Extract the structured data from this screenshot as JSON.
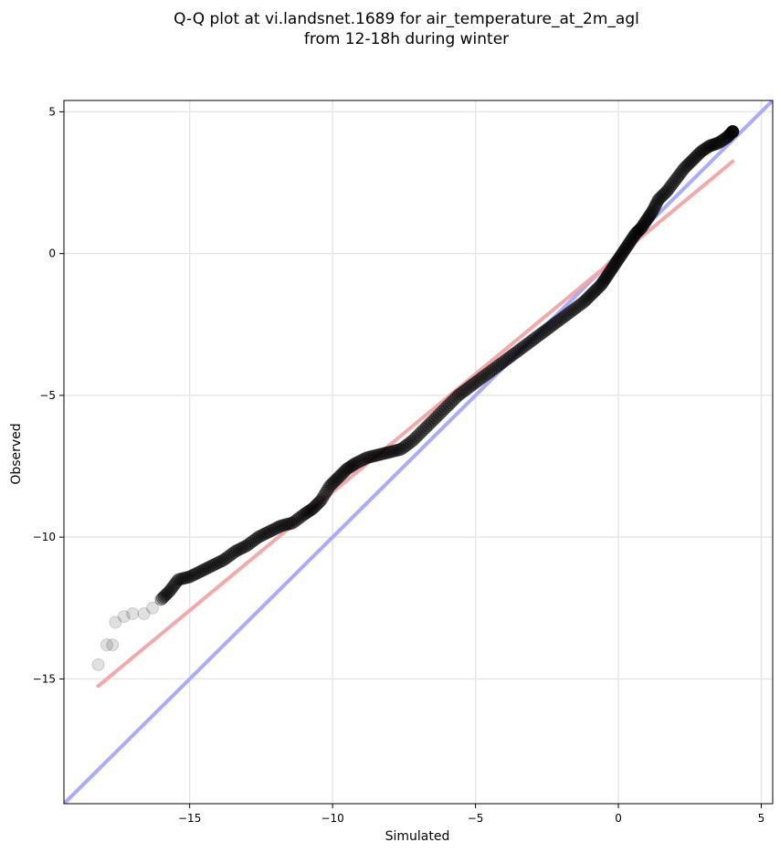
{
  "chart_data": {
    "type": "scatter",
    "title": "Q-Q plot at vi.landsnet.1689 for air_temperature_at_2m_agl",
    "subtitle": "from 12-18h during winter",
    "xlabel": "Simulated",
    "ylabel": "Observed",
    "xlim": [
      -19.4,
      5.4
    ],
    "ylim": [
      -19.4,
      5.4
    ],
    "x_ticks": [
      -15,
      -10,
      -5,
      0,
      5
    ],
    "y_ticks": [
      -15,
      -10,
      -5,
      0,
      5
    ],
    "x_tick_labels": [
      "−15",
      "−10",
      "−5",
      "0",
      "5"
    ],
    "y_tick_labels": [
      "−15",
      "−10",
      "−5",
      "0",
      "5"
    ],
    "grid": true,
    "reference_lines": [
      {
        "kind": "identity",
        "color": "#aaaaff",
        "x": [
          -19.4,
          5.4
        ],
        "y": [
          -19.4,
          5.4
        ]
      },
      {
        "kind": "fit",
        "color": "#f4a8a8",
        "x": [
          -18.2,
          4.0
        ],
        "y": [
          -15.25,
          3.25
        ]
      }
    ],
    "quantile_curve": {
      "color": "#000000",
      "x": [
        -18.2,
        -17.9,
        -17.7,
        -17.6,
        -17.3,
        -17.0,
        -16.6,
        -16.3,
        -16.0,
        -15.7,
        -15.4,
        -15.0,
        -14.6,
        -14.2,
        -13.8,
        -13.4,
        -13.0,
        -12.6,
        -12.2,
        -11.8,
        -11.4,
        -11.0,
        -10.7,
        -10.4,
        -10.1,
        -9.8,
        -9.5,
        -9.2,
        -8.8,
        -8.4,
        -8.0,
        -7.6,
        -7.2,
        -6.8,
        -6.4,
        -6.0,
        -5.6,
        -5.2,
        -4.8,
        -4.4,
        -4.0,
        -3.6,
        -3.2,
        -2.8,
        -2.4,
        -2.0,
        -1.6,
        -1.2,
        -0.9,
        -0.6,
        -0.4,
        -0.2,
        0.0,
        0.2,
        0.4,
        0.6,
        0.8,
        1.0,
        1.2,
        1.4,
        1.7,
        2.0,
        2.3,
        2.6,
        2.9,
        3.2,
        3.5,
        3.8,
        4.0
      ],
      "y": [
        -14.5,
        -13.8,
        -13.8,
        -13.0,
        -12.8,
        -12.7,
        -12.7,
        -12.5,
        -12.2,
        -11.9,
        -11.5,
        -11.4,
        -11.2,
        -11.0,
        -10.8,
        -10.5,
        -10.3,
        -10.0,
        -9.8,
        -9.6,
        -9.5,
        -9.2,
        -9.0,
        -8.7,
        -8.2,
        -7.9,
        -7.6,
        -7.4,
        -7.2,
        -7.1,
        -7.0,
        -6.9,
        -6.6,
        -6.2,
        -5.8,
        -5.4,
        -5.0,
        -4.7,
        -4.4,
        -4.1,
        -3.8,
        -3.5,
        -3.2,
        -2.9,
        -2.6,
        -2.3,
        -2.0,
        -1.7,
        -1.4,
        -1.1,
        -0.8,
        -0.5,
        -0.2,
        0.1,
        0.4,
        0.7,
        0.9,
        1.2,
        1.5,
        1.9,
        2.2,
        2.6,
        3.0,
        3.3,
        3.6,
        3.8,
        3.9,
        4.1,
        4.3
      ]
    }
  }
}
